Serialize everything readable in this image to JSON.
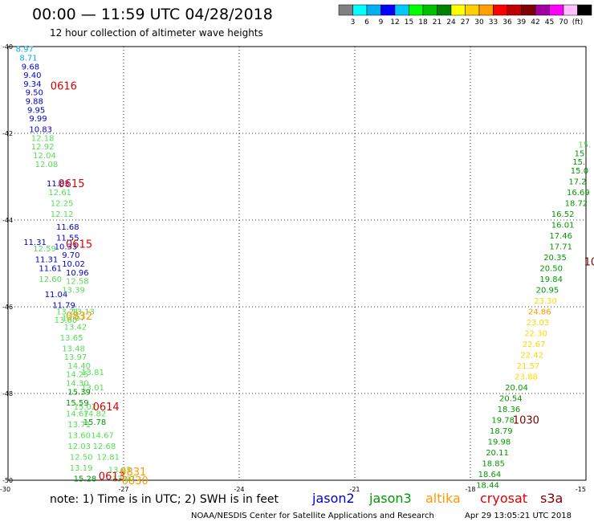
{
  "header": {
    "title": "00:00 — 11:59 UTC 04/28/2018",
    "subtitle": "12 hour collection of altimeter wave heights"
  },
  "legend": {
    "colors": [
      "#808080",
      "#00ffff",
      "#00b0f0",
      "#0000ff",
      "#00c8ff",
      "#00ff00",
      "#00c000",
      "#008000",
      "#ffff00",
      "#ffd000",
      "#ffa000",
      "#ff0000",
      "#c00000",
      "#800000",
      "#a000a0",
      "#ff00ff",
      "#ffc0ff",
      "#000000"
    ],
    "labels": [
      "3",
      "6",
      "9",
      "12",
      "15",
      "18",
      "21",
      "24",
      "27",
      "30",
      "33",
      "36",
      "39",
      "42",
      "45",
      "70",
      "(ft)"
    ]
  },
  "map": {
    "lat_ticks": [
      "-40",
      "-42",
      "-44",
      "-46",
      "-48",
      "-50"
    ],
    "lon_ticks": [
      "-30",
      "-27",
      "-24",
      "-21",
      "-18",
      "-15"
    ],
    "extent": {
      "lon": [
        -30,
        -15
      ],
      "lat": [
        -50,
        -40
      ]
    }
  },
  "chart_data": {
    "type": "scatter",
    "title": "00:00 — 11:59 UTC 04/28/2018",
    "subtitle": "12 hour collection of altimeter wave heights",
    "xlabel": "",
    "ylabel": "",
    "xlim": [
      -30,
      -15
    ],
    "ylim": [
      -50,
      -40
    ],
    "grid": true,
    "units": "ft",
    "series": [
      {
        "name": "jason2",
        "color": "#0000cc",
        "points": [
          {
            "lon": -29.8,
            "lat": -40.05,
            "value": "8.97",
            "color": "#00b0f0"
          },
          {
            "lon": -29.7,
            "lat": -40.25,
            "value": "8.71",
            "color": "#00b0f0"
          },
          {
            "lon": -29.65,
            "lat": -40.45,
            "value": "9.68"
          },
          {
            "lon": -29.6,
            "lat": -40.65,
            "value": "9.40"
          },
          {
            "lon": -29.6,
            "lat": -40.85,
            "value": "9.34"
          },
          {
            "lon": -29.55,
            "lat": -41.05,
            "value": "9.50"
          },
          {
            "lon": -29.55,
            "lat": -41.25,
            "value": "9.88"
          },
          {
            "lon": -29.5,
            "lat": -41.45,
            "value": "9.95"
          },
          {
            "lon": -29.45,
            "lat": -41.65,
            "value": "9.99"
          },
          {
            "lon": -29.45,
            "lat": -41.9,
            "value": "10.83"
          },
          {
            "lon": -29.0,
            "lat": -43.15,
            "value": "11.83"
          },
          {
            "lon": -28.75,
            "lat": -44.15,
            "value": "11.68"
          },
          {
            "lon": -28.75,
            "lat": -44.4,
            "value": "11.55"
          },
          {
            "lon": -29.6,
            "lat": -44.5,
            "value": "11.31"
          },
          {
            "lon": -28.8,
            "lat": -44.6,
            "value": "10.33"
          },
          {
            "lon": -28.6,
            "lat": -44.8,
            "value": "9.70"
          },
          {
            "lon": -29.3,
            "lat": -44.9,
            "value": "11.31"
          },
          {
            "lon": -28.6,
            "lat": -45.0,
            "value": "10.02"
          },
          {
            "lon": -29.2,
            "lat": -45.1,
            "value": "11.61"
          },
          {
            "lon": -28.5,
            "lat": -45.2,
            "value": "10.96"
          },
          {
            "lon": -29.05,
            "lat": -45.7,
            "value": "11.04"
          },
          {
            "lon": -28.85,
            "lat": -45.95,
            "value": "11.79"
          }
        ]
      },
      {
        "name": "jason3",
        "color": "#009900",
        "points": [
          {
            "lon": -29.4,
            "lat": -42.1,
            "value": "12.18",
            "color": "#55dd55"
          },
          {
            "lon": -29.4,
            "lat": -42.3,
            "value": "12.92",
            "color": "#55dd55"
          },
          {
            "lon": -29.35,
            "lat": -42.5,
            "value": "12.04",
            "color": "#55dd55"
          },
          {
            "lon": -29.3,
            "lat": -42.7,
            "value": "12.08",
            "color": "#55dd55"
          },
          {
            "lon": -28.95,
            "lat": -43.35,
            "value": "12.61",
            "color": "#55dd55"
          },
          {
            "lon": -28.9,
            "lat": -43.6,
            "value": "12.25",
            "color": "#55dd55"
          },
          {
            "lon": -28.9,
            "lat": -43.85,
            "value": "12.12",
            "color": "#55dd55"
          },
          {
            "lon": -29.35,
            "lat": -44.65,
            "value": "12.59",
            "color": "#55dd55"
          },
          {
            "lon": -29.2,
            "lat": -45.35,
            "value": "12.60",
            "color": "#55dd55"
          },
          {
            "lon": -28.5,
            "lat": -45.4,
            "value": "12.58",
            "color": "#55dd55"
          },
          {
            "lon": -28.6,
            "lat": -45.6,
            "value": "13.39",
            "color": "#55dd55"
          },
          {
            "lon": -28.35,
            "lat": -46.1,
            "value": "13.13",
            "color": "#55dd55"
          },
          {
            "lon": -28.75,
            "lat": -46.1,
            "value": "13.21",
            "color": "#55dd55"
          },
          {
            "lon": -28.6,
            "lat": -46.25,
            "value": "13.07",
            "color": "#55dd55"
          },
          {
            "lon": -28.8,
            "lat": -46.3,
            "value": "13.00",
            "color": "#55dd55"
          },
          {
            "lon": -28.55,
            "lat": -46.45,
            "value": "13.42",
            "color": "#55dd55"
          },
          {
            "lon": -28.65,
            "lat": -46.7,
            "value": "13.65",
            "color": "#55dd55"
          },
          {
            "lon": -28.6,
            "lat": -46.95,
            "value": "13.48",
            "color": "#55dd55"
          },
          {
            "lon": -28.55,
            "lat": -47.15,
            "value": "13.97",
            "color": "#55dd55"
          },
          {
            "lon": -28.45,
            "lat": -47.35,
            "value": "14.40",
            "color": "#55dd55"
          },
          {
            "lon": -28.5,
            "lat": -47.55,
            "value": "14.25",
            "color": "#55dd55"
          },
          {
            "lon": -28.1,
            "lat": -47.5,
            "value": "13.81",
            "color": "#55dd55"
          },
          {
            "lon": -28.5,
            "lat": -47.75,
            "value": "14.30",
            "color": "#55dd55"
          },
          {
            "lon": -28.1,
            "lat": -47.85,
            "value": "13.01",
            "color": "#55dd55"
          },
          {
            "lon": -28.45,
            "lat": -47.95,
            "value": "15.39"
          },
          {
            "lon": -28.5,
            "lat": -48.2,
            "value": "15.59"
          },
          {
            "lon": -28.3,
            "lat": -48.3,
            "value": "15.02",
            "color": "#55dd55"
          },
          {
            "lon": -28.5,
            "lat": -48.45,
            "value": "14.67",
            "color": "#55dd55"
          },
          {
            "lon": -28.05,
            "lat": -48.45,
            "value": "14.82",
            "color": "#55dd55"
          },
          {
            "lon": -28.45,
            "lat": -48.7,
            "value": "13.71",
            "color": "#55dd55"
          },
          {
            "lon": -28.05,
            "lat": -48.65,
            "value": "15.78"
          },
          {
            "lon": -28.45,
            "lat": -48.95,
            "value": "13.60",
            "color": "#55dd55"
          },
          {
            "lon": -27.85,
            "lat": -48.95,
            "value": "14.67",
            "color": "#55dd55"
          },
          {
            "lon": -28.45,
            "lat": -49.2,
            "value": "12.03",
            "color": "#55dd55"
          },
          {
            "lon": -27.8,
            "lat": -49.2,
            "value": "12.68",
            "color": "#55dd55"
          },
          {
            "lon": -28.4,
            "lat": -49.45,
            "value": "12.50",
            "color": "#55dd55"
          },
          {
            "lon": -27.7,
            "lat": -49.45,
            "value": "12.81",
            "color": "#55dd55"
          },
          {
            "lon": -28.4,
            "lat": -49.7,
            "value": "13.19",
            "color": "#55dd55"
          },
          {
            "lon": -27.4,
            "lat": -49.75,
            "value": "13.63",
            "color": "#55dd55"
          },
          {
            "lon": -28.3,
            "lat": -49.95,
            "value": "15.28"
          },
          {
            "lon": -27.3,
            "lat": -49.95,
            "value": "13.07",
            "color": "#55dd55"
          },
          {
            "lon": -15.2,
            "lat": -42.25,
            "value": "15.",
            "color": "#55dd55"
          },
          {
            "lon": -15.3,
            "lat": -42.45,
            "value": "15.",
            "color": "#009900"
          },
          {
            "lon": -15.35,
            "lat": -42.65,
            "value": "15.",
            "color": "#009900"
          },
          {
            "lon": -15.4,
            "lat": -42.85,
            "value": "15.0",
            "color": "#009900"
          },
          {
            "lon": -15.45,
            "lat": -43.1,
            "value": "17.2",
            "color": "#009900"
          },
          {
            "lon": -15.5,
            "lat": -43.35,
            "value": "16.69",
            "color": "#009900"
          },
          {
            "lon": -15.55,
            "lat": -43.6,
            "value": "18.72",
            "color": "#009900"
          },
          {
            "lon": -15.9,
            "lat": -43.85,
            "value": "16.52",
            "color": "#009900"
          },
          {
            "lon": -15.9,
            "lat": -44.1,
            "value": "16.01",
            "color": "#009900"
          },
          {
            "lon": -15.95,
            "lat": -44.35,
            "value": "17.46",
            "color": "#009900"
          },
          {
            "lon": -15.95,
            "lat": -44.6,
            "value": "17.71",
            "color": "#009900"
          },
          {
            "lon": -16.1,
            "lat": -44.85,
            "value": "20.35",
            "color": "#009900"
          },
          {
            "lon": -16.2,
            "lat": -45.1,
            "value": "20.50",
            "color": "#009900"
          },
          {
            "lon": -16.2,
            "lat": -45.35,
            "value": "19.84",
            "color": "#009900"
          },
          {
            "lon": -16.3,
            "lat": -45.6,
            "value": "20.95",
            "color": "#009900"
          },
          {
            "lon": -17.1,
            "lat": -47.85,
            "value": "20.04",
            "color": "#009900"
          },
          {
            "lon": -17.25,
            "lat": -48.1,
            "value": "20.54",
            "color": "#009900"
          },
          {
            "lon": -17.3,
            "lat": -48.35,
            "value": "18.36",
            "color": "#009900"
          },
          {
            "lon": -17.45,
            "lat": -48.6,
            "value": "19.78",
            "color": "#009900"
          },
          {
            "lon": -17.5,
            "lat": -48.85,
            "value": "18.79",
            "color": "#009900"
          },
          {
            "lon": -17.55,
            "lat": -49.1,
            "value": "19.98",
            "color": "#009900"
          },
          {
            "lon": -17.6,
            "lat": -49.35,
            "value": "20.11",
            "color": "#009900"
          },
          {
            "lon": -17.7,
            "lat": -49.6,
            "value": "18.85",
            "color": "#009900"
          },
          {
            "lon": -17.8,
            "lat": -49.85,
            "value": "18.64",
            "color": "#009900"
          },
          {
            "lon": -17.85,
            "lat": -50.1,
            "value": "18.44",
            "color": "#009900"
          }
        ]
      },
      {
        "name": "altika",
        "color": "#ff9900",
        "points": [
          {
            "lon": -16.35,
            "lat": -45.85,
            "value": "23.30",
            "color": "#ffd700"
          },
          {
            "lon": -16.5,
            "lat": -46.1,
            "value": "24.86",
            "color": "#ff9900"
          },
          {
            "lon": -16.55,
            "lat": -46.35,
            "value": "23.03",
            "color": "#ffd700"
          },
          {
            "lon": -16.6,
            "lat": -46.6,
            "value": "22.30",
            "color": "#ffd700"
          },
          {
            "lon": -16.65,
            "lat": -46.85,
            "value": "22.67",
            "color": "#ffd700"
          },
          {
            "lon": -16.7,
            "lat": -47.1,
            "value": "22.42",
            "color": "#ffd700"
          },
          {
            "lon": -16.8,
            "lat": -47.35,
            "value": "21.57",
            "color": "#ffd700"
          },
          {
            "lon": -16.85,
            "lat": -47.6,
            "value": "23.88",
            "color": "#ffd700"
          }
        ]
      },
      {
        "name": "cryosat",
        "color": "#dd0000",
        "points": []
      },
      {
        "name": "s3a",
        "color": "#800000",
        "points": []
      }
    ],
    "pass_labels": [
      {
        "lon": -28.9,
        "lat": -40.9,
        "text": "0616",
        "color": "#dd0000"
      },
      {
        "lon": -28.7,
        "lat": -43.15,
        "text": "0615",
        "color": "#dd0000"
      },
      {
        "lon": -28.5,
        "lat": -44.55,
        "text": "0615",
        "color": "#dd0000"
      },
      {
        "lon": -28.5,
        "lat": -46.2,
        "text": "0832",
        "color": "#ff9900"
      },
      {
        "lon": -27.8,
        "lat": -48.3,
        "text": "0614",
        "color": "#dd0000"
      },
      {
        "lon": -27.65,
        "lat": -49.9,
        "text": "0613",
        "color": "#dd0000"
      },
      {
        "lon": -27.1,
        "lat": -49.8,
        "text": "0831",
        "color": "#ff9900"
      },
      {
        "lon": -27.05,
        "lat": -50.0,
        "text": "0830",
        "color": "#ff9900"
      },
      {
        "lon": -15.05,
        "lat": -44.95,
        "text": "10",
        "color": "#800000"
      },
      {
        "lon": -16.9,
        "lat": -48.6,
        "text": "1030",
        "color": "#800000"
      }
    ]
  },
  "footer": {
    "note_prefix": "note:  1) Time is in UTC; 2) SWH is in feet",
    "sat_jason2": "jason2",
    "sat_jason3": "jason3",
    "sat_altika": "altika",
    "sat_cryosat": "cryosat",
    "sat_s3a": "s3a",
    "credit": "NOAA/NESDIS Center for Satellite Applications and Research",
    "timestamp": "Apr 29 13:05:21 UTC 2018"
  }
}
